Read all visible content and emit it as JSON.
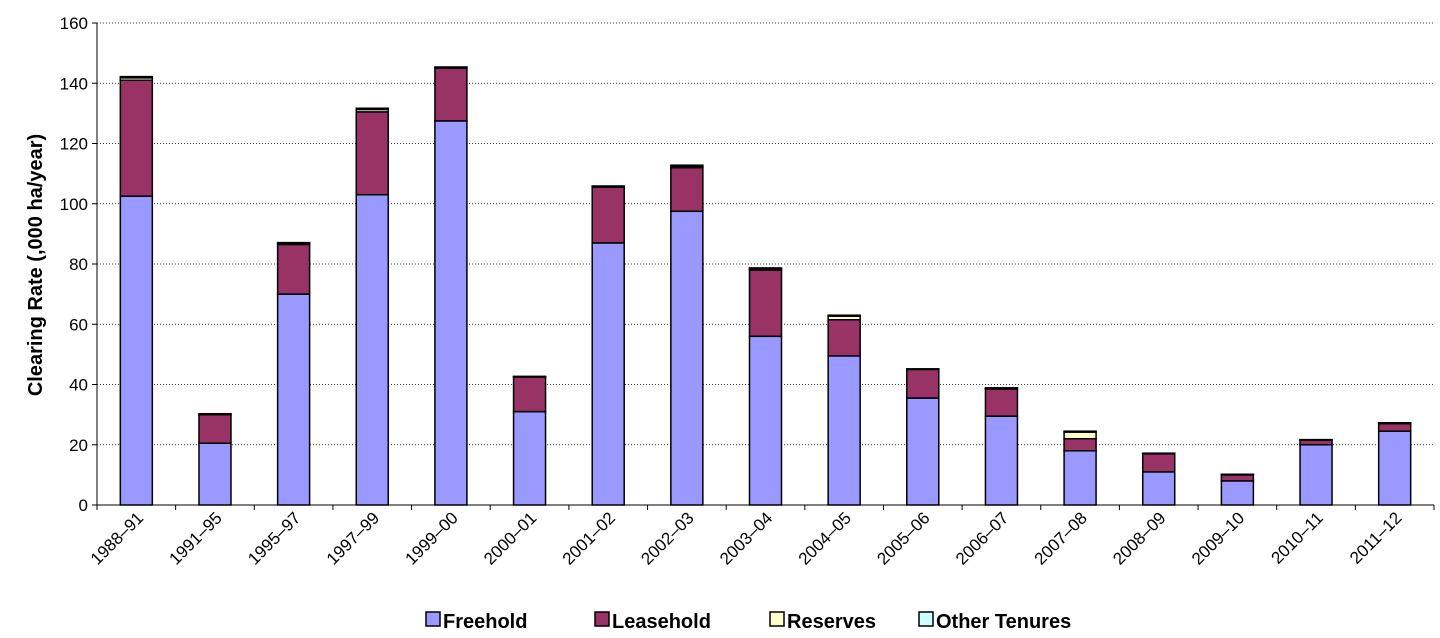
{
  "chart_data": {
    "type": "bar",
    "stacked": true,
    "ylabel": "Clearing Rate (,000 ha/year)",
    "xlabel": "",
    "ylim": [
      0,
      160
    ],
    "yticks": [
      "0",
      "20",
      "40",
      "60",
      "80",
      "100",
      "120",
      "140",
      "160"
    ],
    "grid": "horizontal dotted",
    "legend_position": "bottom",
    "categories": [
      "1988–91",
      "1991–95",
      "1995–97",
      "1997–99",
      "1999–00",
      "2000–01",
      "2001–02",
      "2002–03",
      "2003–04",
      "2004–05",
      "2005–06",
      "2006–07",
      "2007–08",
      "2008–09",
      "2009–10",
      "2010–11",
      "2011–12"
    ],
    "series": [
      {
        "name": "Freehold",
        "color": "#9999ff",
        "values": [
          102.5,
          20.5,
          70,
          103,
          127.5,
          31,
          87,
          97.5,
          56,
          49.5,
          35.5,
          29.5,
          18,
          11,
          8,
          20,
          24.5
        ]
      },
      {
        "name": "Leasehold",
        "color": "#993366",
        "values": [
          38.5,
          9.5,
          16.5,
          27.5,
          17.5,
          11.5,
          18.5,
          14.5,
          22,
          12,
          9.5,
          9,
          4,
          6,
          2,
          1.5,
          2.5
        ]
      },
      {
        "name": "Reserves",
        "color": "#ffffcc",
        "values": [
          0.8,
          0.2,
          0.4,
          0.8,
          0.2,
          0.1,
          0.2,
          0.5,
          0.4,
          1.2,
          0.1,
          0.2,
          2.2,
          0.1,
          0.1,
          0.1,
          0.2
        ]
      },
      {
        "name": "Other Tenures",
        "color": "#ccffff",
        "values": [
          0.4,
          0.1,
          0.2,
          0.4,
          0.2,
          0.1,
          0.2,
          0.3,
          0.3,
          0.3,
          0.1,
          0.2,
          0.3,
          0.1,
          0.1,
          0.1,
          0.1
        ]
      }
    ]
  }
}
